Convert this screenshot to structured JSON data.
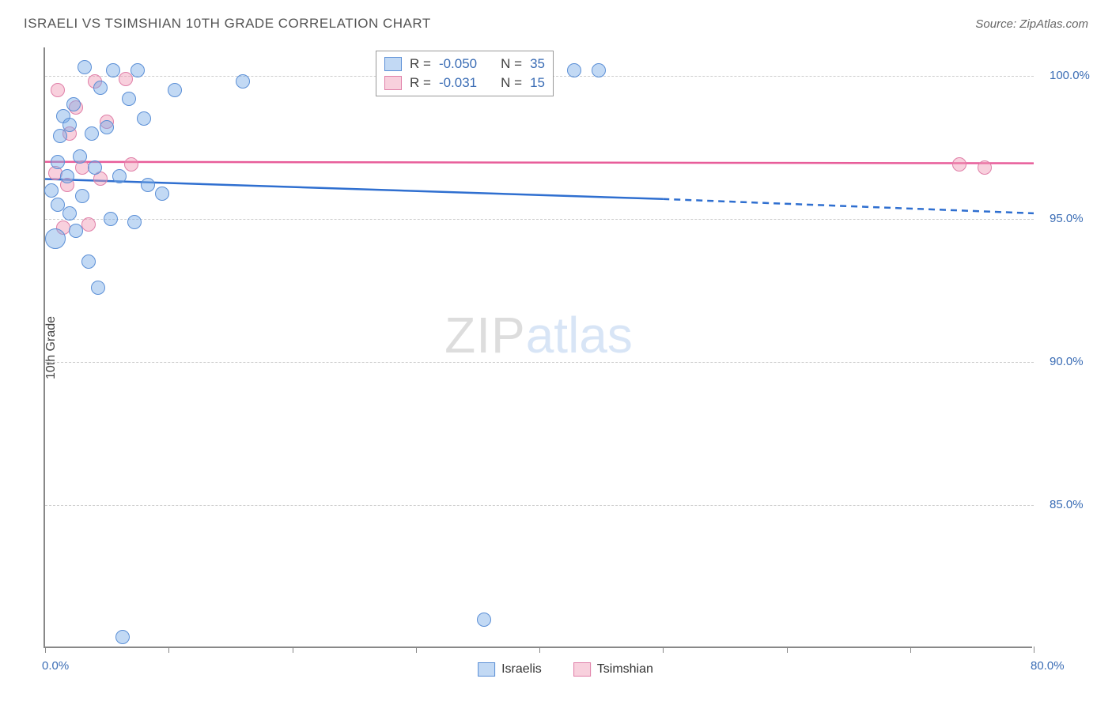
{
  "header": {
    "title": "ISRAELI VS TSIMSHIAN 10TH GRADE CORRELATION CHART",
    "source_prefix": "Source: ",
    "source_name": "ZipAtlas.com"
  },
  "chart": {
    "type": "scatter",
    "y_axis_title": "10th Grade",
    "background_color": "#ffffff",
    "grid_color": "#cccccc",
    "axis_color": "#888888",
    "label_color": "#3b6db5",
    "xlim": [
      0,
      80
    ],
    "ylim": [
      80,
      101
    ],
    "x_ticks": [
      0,
      10,
      20,
      30,
      40,
      50,
      60,
      70,
      80
    ],
    "x_tick_labels": [
      "0.0%",
      "",
      "",
      "",
      "",
      "",
      "",
      "",
      "80.0%"
    ],
    "y_grid": [
      85,
      90,
      95,
      100
    ],
    "y_grid_labels": [
      "85.0%",
      "90.0%",
      "95.0%",
      "100.0%"
    ],
    "watermark": {
      "zip": "ZIP",
      "atlas": "atlas"
    },
    "label_fontsize": 15,
    "axis_title_fontsize": 16,
    "series": {
      "israelis": {
        "label": "Israelis",
        "fill": "rgba(120,170,230,0.45)",
        "stroke": "#5b8fd6",
        "line_color": "#2f6fd0",
        "R": "-0.050",
        "N": "35",
        "trend": {
          "x1": 0,
          "y1": 96.4,
          "x2_solid": 50,
          "y2_solid": 95.7,
          "x2": 80,
          "y2": 95.2
        },
        "points": [
          {
            "x": 0.5,
            "y": 96.0,
            "r": 9
          },
          {
            "x": 0.8,
            "y": 94.3,
            "r": 13
          },
          {
            "x": 1.0,
            "y": 95.5,
            "r": 9
          },
          {
            "x": 1.2,
            "y": 97.9,
            "r": 9
          },
          {
            "x": 1.5,
            "y": 98.6,
            "r": 9
          },
          {
            "x": 1.8,
            "y": 96.5,
            "r": 9
          },
          {
            "x": 2.0,
            "y": 98.3,
            "r": 9
          },
          {
            "x": 2.3,
            "y": 99.0,
            "r": 9
          },
          {
            "x": 2.5,
            "y": 94.6,
            "r": 9
          },
          {
            "x": 2.8,
            "y": 97.2,
            "r": 9
          },
          {
            "x": 3.0,
            "y": 95.8,
            "r": 9
          },
          {
            "x": 3.2,
            "y": 100.3,
            "r": 9
          },
          {
            "x": 3.5,
            "y": 93.5,
            "r": 9
          },
          {
            "x": 3.8,
            "y": 98.0,
            "r": 9
          },
          {
            "x": 4.0,
            "y": 96.8,
            "r": 9
          },
          {
            "x": 4.3,
            "y": 92.6,
            "r": 9
          },
          {
            "x": 4.5,
            "y": 99.6,
            "r": 9
          },
          {
            "x": 5.0,
            "y": 98.2,
            "r": 9
          },
          {
            "x": 5.3,
            "y": 95.0,
            "r": 9
          },
          {
            "x": 5.5,
            "y": 100.2,
            "r": 9
          },
          {
            "x": 6.0,
            "y": 96.5,
            "r": 9
          },
          {
            "x": 6.3,
            "y": 80.4,
            "r": 9
          },
          {
            "x": 6.8,
            "y": 99.2,
            "r": 9
          },
          {
            "x": 7.2,
            "y": 94.9,
            "r": 9
          },
          {
            "x": 7.5,
            "y": 100.2,
            "r": 9
          },
          {
            "x": 8.0,
            "y": 98.5,
            "r": 9
          },
          {
            "x": 8.3,
            "y": 96.2,
            "r": 9
          },
          {
            "x": 9.5,
            "y": 95.9,
            "r": 9
          },
          {
            "x": 10.5,
            "y": 99.5,
            "r": 9
          },
          {
            "x": 16.0,
            "y": 99.8,
            "r": 9
          },
          {
            "x": 35.5,
            "y": 81.0,
            "r": 9
          },
          {
            "x": 42.8,
            "y": 100.2,
            "r": 9
          },
          {
            "x": 44.8,
            "y": 100.2,
            "r": 9
          },
          {
            "x": 1.0,
            "y": 97.0,
            "r": 9
          },
          {
            "x": 2.0,
            "y": 95.2,
            "r": 9
          }
        ]
      },
      "tsimshian": {
        "label": "Tsimshian",
        "fill": "rgba(240,150,180,0.45)",
        "stroke": "#e07fa8",
        "line_color": "#e85d9a",
        "R": "-0.031",
        "N": "15",
        "trend": {
          "x1": 0,
          "y1": 97.0,
          "x2_solid": 80,
          "y2_solid": 96.95,
          "x2": 80,
          "y2": 96.95
        },
        "points": [
          {
            "x": 0.8,
            "y": 96.6,
            "r": 9
          },
          {
            "x": 1.0,
            "y": 99.5,
            "r": 9
          },
          {
            "x": 1.5,
            "y": 94.7,
            "r": 9
          },
          {
            "x": 1.8,
            "y": 96.2,
            "r": 9
          },
          {
            "x": 2.0,
            "y": 98.0,
            "r": 9
          },
          {
            "x": 2.5,
            "y": 98.9,
            "r": 9
          },
          {
            "x": 3.0,
            "y": 96.8,
            "r": 9
          },
          {
            "x": 3.5,
            "y": 94.8,
            "r": 9
          },
          {
            "x": 4.0,
            "y": 99.8,
            "r": 9
          },
          {
            "x": 4.5,
            "y": 96.4,
            "r": 9
          },
          {
            "x": 5.0,
            "y": 98.4,
            "r": 9
          },
          {
            "x": 6.5,
            "y": 99.9,
            "r": 9
          },
          {
            "x": 7.0,
            "y": 96.9,
            "r": 9
          },
          {
            "x": 74.0,
            "y": 96.9,
            "r": 9
          },
          {
            "x": 76.0,
            "y": 96.8,
            "r": 9
          }
        ]
      }
    },
    "stats_legend": {
      "R_label": "R =",
      "N_label": "N ="
    }
  }
}
